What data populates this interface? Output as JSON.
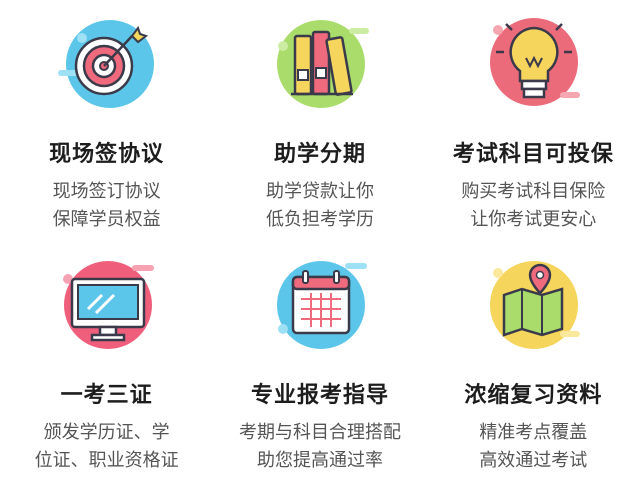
{
  "items": [
    {
      "title": "现场签协议",
      "lines": [
        "现场签订协议",
        "保障学员权益"
      ],
      "icon": "target-icon",
      "accent": "#5cc6ea"
    },
    {
      "title": "助学分期",
      "lines": [
        "助学贷款让你",
        "低负担考学历"
      ],
      "icon": "binders-icon",
      "accent": "#a9dc6a"
    },
    {
      "title": "考试科目可投保",
      "lines": [
        "购买考试科目保险",
        "让你考试更安心"
      ],
      "icon": "lightbulb-icon",
      "accent": "#ec6b7a"
    },
    {
      "title": "一考三证",
      "lines": [
        "颁发学历证、学",
        "位证、职业资格证"
      ],
      "icon": "monitor-icon",
      "accent": "#ef5f7c"
    },
    {
      "title": "专业报考指导",
      "lines": [
        "考期与科目合理搭配",
        "助您提高通过率"
      ],
      "icon": "calendar-icon",
      "accent": "#5cc6ea"
    },
    {
      "title": "浓缩复习资料",
      "lines": [
        "精准考点覆盖",
        "高效通过考试"
      ],
      "icon": "map-icon",
      "accent": "#f6d55c"
    }
  ]
}
